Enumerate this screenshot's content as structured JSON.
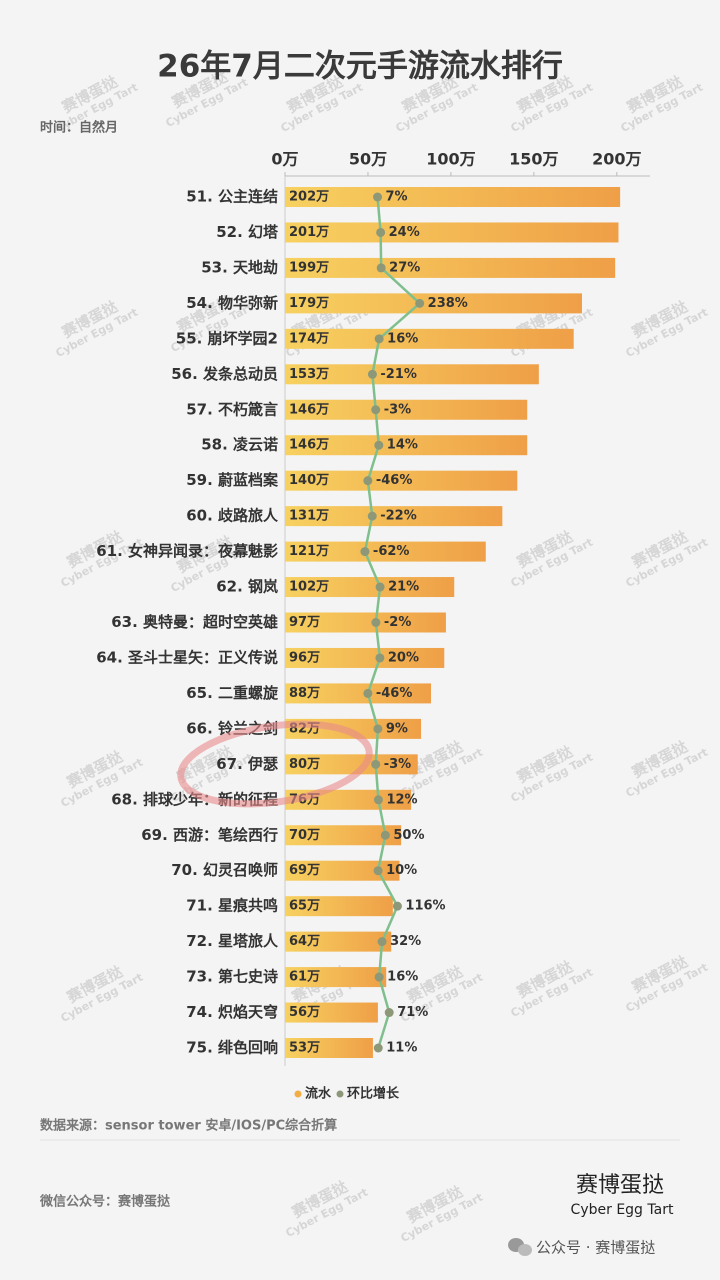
{
  "chart_data": {
    "type": "bar",
    "orientation": "horizontal",
    "title": "26年7月二次元手游流水排行",
    "subtitle": "时间：自然月",
    "categories": [
      "51. 公主连结",
      "52. 幻塔",
      "53. 天地劫",
      "54. 物华弥新",
      "55. 崩坏学园2",
      "56. 发条总动员",
      "57. 不朽箴言",
      "58. 凌云诺",
      "59. 蔚蓝档案",
      "60. 歧路旅人",
      "61. 女神异闻录：夜幕魅影",
      "62. 钢岚",
      "63. 奥特曼：超时空英雄",
      "64. 圣斗士星矢：正义传说",
      "65. 二重螺旋",
      "66. 铃兰之剑",
      "67. 伊瑟",
      "68. 排球少年：新的征程",
      "69. 西游：笔绘西行",
      "70. 幻灵召唤师",
      "71. 星痕共鸣",
      "72. 星塔旅人",
      "73. 第七史诗",
      "74. 炽焰天穹",
      "75. 绯色回响"
    ],
    "series": [
      {
        "name": "流水",
        "color": "#f2ae45",
        "values": [
          202,
          201,
          199,
          179,
          174,
          153,
          146,
          146,
          140,
          131,
          121,
          102,
          97,
          96,
          88,
          82,
          80,
          76,
          70,
          69,
          65,
          64,
          61,
          56,
          53
        ],
        "value_labels": [
          "202万",
          "201万",
          "199万",
          "179万",
          "174万",
          "153万",
          "146万",
          "146万",
          "140万",
          "131万",
          "121万",
          "102万",
          "97万",
          "96万",
          "88万",
          "82万",
          "80万",
          "76万",
          "70万",
          "69万",
          "65万",
          "64万",
          "61万",
          "56万",
          "53万"
        ]
      },
      {
        "name": "环比增长",
        "type": "line",
        "axis": "x2",
        "color": "#7fbf8e",
        "marker_color": "#8c9878",
        "values": [
          7,
          24,
          27,
          238,
          16,
          -21,
          -3,
          14,
          -46,
          -22,
          -62,
          21,
          -2,
          20,
          -46,
          9,
          -3,
          12,
          50,
          10,
          116,
          32,
          16,
          71,
          11
        ],
        "value_labels": [
          "7%",
          "24%",
          "27%",
          "238%",
          "16%",
          "-21%",
          "-3%",
          "14%",
          "-46%",
          "-22%",
          "-62%",
          "21%",
          "-2%",
          "20%",
          "-46%",
          "9%",
          "-3%",
          "12%",
          "50%",
          "10%",
          "116%",
          "32%",
          "16%",
          "71%",
          "11%"
        ]
      }
    ],
    "xlim": [
      0,
      220
    ],
    "xticks": [
      {
        "value": 0,
        "label": "0万"
      },
      {
        "value": 50,
        "label": "50万"
      },
      {
        "value": 100,
        "label": "100万"
      },
      {
        "value": 150,
        "label": "150万"
      },
      {
        "value": 200,
        "label": "200万"
      }
    ],
    "x2lim": [
      -500,
      1500
    ],
    "legend": "bottom",
    "source": "数据来源：sensor tower 安卓/IOS/PC综合折算",
    "footer": "微信公众号：赛博蛋挞",
    "brand": "赛博蛋挞",
    "brand_en": "Cyber Egg Tart",
    "watermark": "赛博蛋挞",
    "watermark_en": "Cyber Egg Tart",
    "account": "公众号 · 赛博蛋挞"
  }
}
